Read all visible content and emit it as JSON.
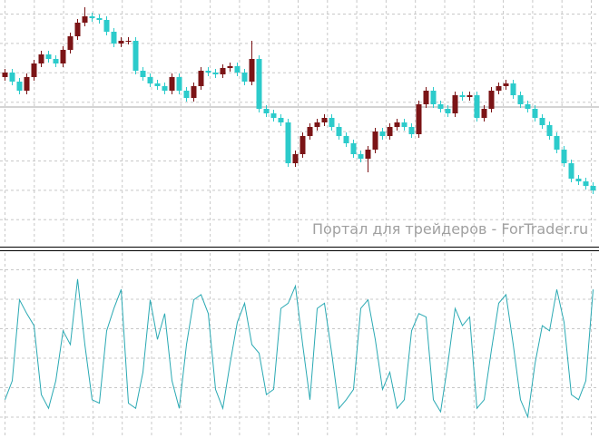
{
  "chart_data": [
    {
      "type": "candlestick",
      "up_color": "#7b1416",
      "down_color": "#2ccbcb",
      "ylim": [
        0,
        270
      ],
      "open": [
        185,
        190,
        180,
        170,
        185,
        200,
        210,
        205,
        200,
        215,
        230,
        245,
        252,
        250,
        248,
        235,
        222,
        225,
        225,
        192,
        185,
        178,
        175,
        170,
        185,
        170,
        162,
        175,
        192,
        190,
        188,
        195,
        197,
        190,
        180,
        205,
        150,
        145,
        140,
        135,
        90,
        100,
        120,
        130,
        135,
        140,
        130,
        120,
        112,
        100,
        95,
        105,
        125,
        120,
        130,
        135,
        130,
        122,
        155,
        170,
        155,
        150,
        145,
        165,
        163,
        165,
        140,
        150,
        170,
        175,
        178,
        165,
        155,
        150,
        140,
        132,
        120,
        105,
        90,
        73,
        70,
        65
      ],
      "high": [
        194,
        194,
        184,
        189,
        204,
        214,
        214,
        209,
        219,
        234,
        249,
        262,
        256,
        254,
        252,
        239,
        229,
        229,
        229,
        196,
        189,
        182,
        179,
        189,
        189,
        174,
        179,
        196,
        196,
        194,
        199,
        201,
        201,
        194,
        225,
        209,
        154,
        149,
        144,
        139,
        104,
        124,
        134,
        139,
        144,
        144,
        134,
        124,
        116,
        104,
        109,
        129,
        129,
        134,
        139,
        139,
        134,
        159,
        174,
        174,
        159,
        154,
        169,
        169,
        169,
        169,
        154,
        174,
        179,
        182,
        182,
        169,
        159,
        154,
        144,
        136,
        124,
        109,
        94,
        77,
        74,
        69
      ],
      "low": [
        181,
        176,
        166,
        166,
        181,
        196,
        201,
        196,
        196,
        211,
        226,
        241,
        246,
        244,
        231,
        218,
        218,
        221,
        188,
        181,
        174,
        171,
        166,
        166,
        166,
        158,
        158,
        171,
        186,
        184,
        184,
        191,
        186,
        176,
        176,
        146,
        141,
        136,
        131,
        86,
        86,
        96,
        116,
        126,
        131,
        126,
        116,
        108,
        96,
        91,
        80,
        101,
        116,
        116,
        126,
        126,
        118,
        118,
        151,
        151,
        146,
        141,
        141,
        159,
        159,
        136,
        136,
        146,
        166,
        171,
        161,
        151,
        146,
        136,
        128,
        116,
        101,
        86,
        69,
        66,
        61,
        56
      ],
      "close": [
        190,
        180,
        170,
        185,
        200,
        210,
        205,
        200,
        215,
        230,
        245,
        252,
        250,
        248,
        235,
        222,
        225,
        225,
        192,
        185,
        178,
        175,
        170,
        185,
        170,
        162,
        175,
        192,
        190,
        188,
        195,
        197,
        190,
        180,
        205,
        150,
        145,
        140,
        135,
        90,
        100,
        120,
        130,
        135,
        140,
        130,
        120,
        112,
        100,
        95,
        105,
        125,
        120,
        130,
        135,
        130,
        122,
        155,
        170,
        155,
        150,
        145,
        165,
        163,
        165,
        140,
        150,
        170,
        175,
        178,
        165,
        155,
        150,
        140,
        132,
        120,
        105,
        90,
        73,
        70,
        65,
        60
      ]
    },
    {
      "type": "line",
      "color": "#2aa9b3",
      "ylim": [
        0,
        100
      ],
      "values": [
        18,
        29,
        76,
        68,
        61,
        21,
        13,
        29,
        58,
        50,
        88,
        50,
        18,
        16,
        58,
        71,
        82,
        16,
        13,
        34,
        76,
        53,
        68,
        29,
        13,
        50,
        76,
        79,
        68,
        24,
        13,
        39,
        63,
        74,
        50,
        45,
        21,
        24,
        71,
        74,
        84,
        50,
        18,
        71,
        74,
        45,
        13,
        18,
        24,
        71,
        76,
        53,
        24,
        34,
        13,
        18,
        58,
        68,
        66,
        18,
        11,
        39,
        71,
        61,
        66,
        13,
        18,
        47,
        74,
        79,
        50,
        18,
        8,
        39,
        61,
        58,
        82,
        63,
        21,
        18,
        29,
        82
      ]
    }
  ],
  "watermark": "Портал для трейдеров - ForTrader.ru"
}
